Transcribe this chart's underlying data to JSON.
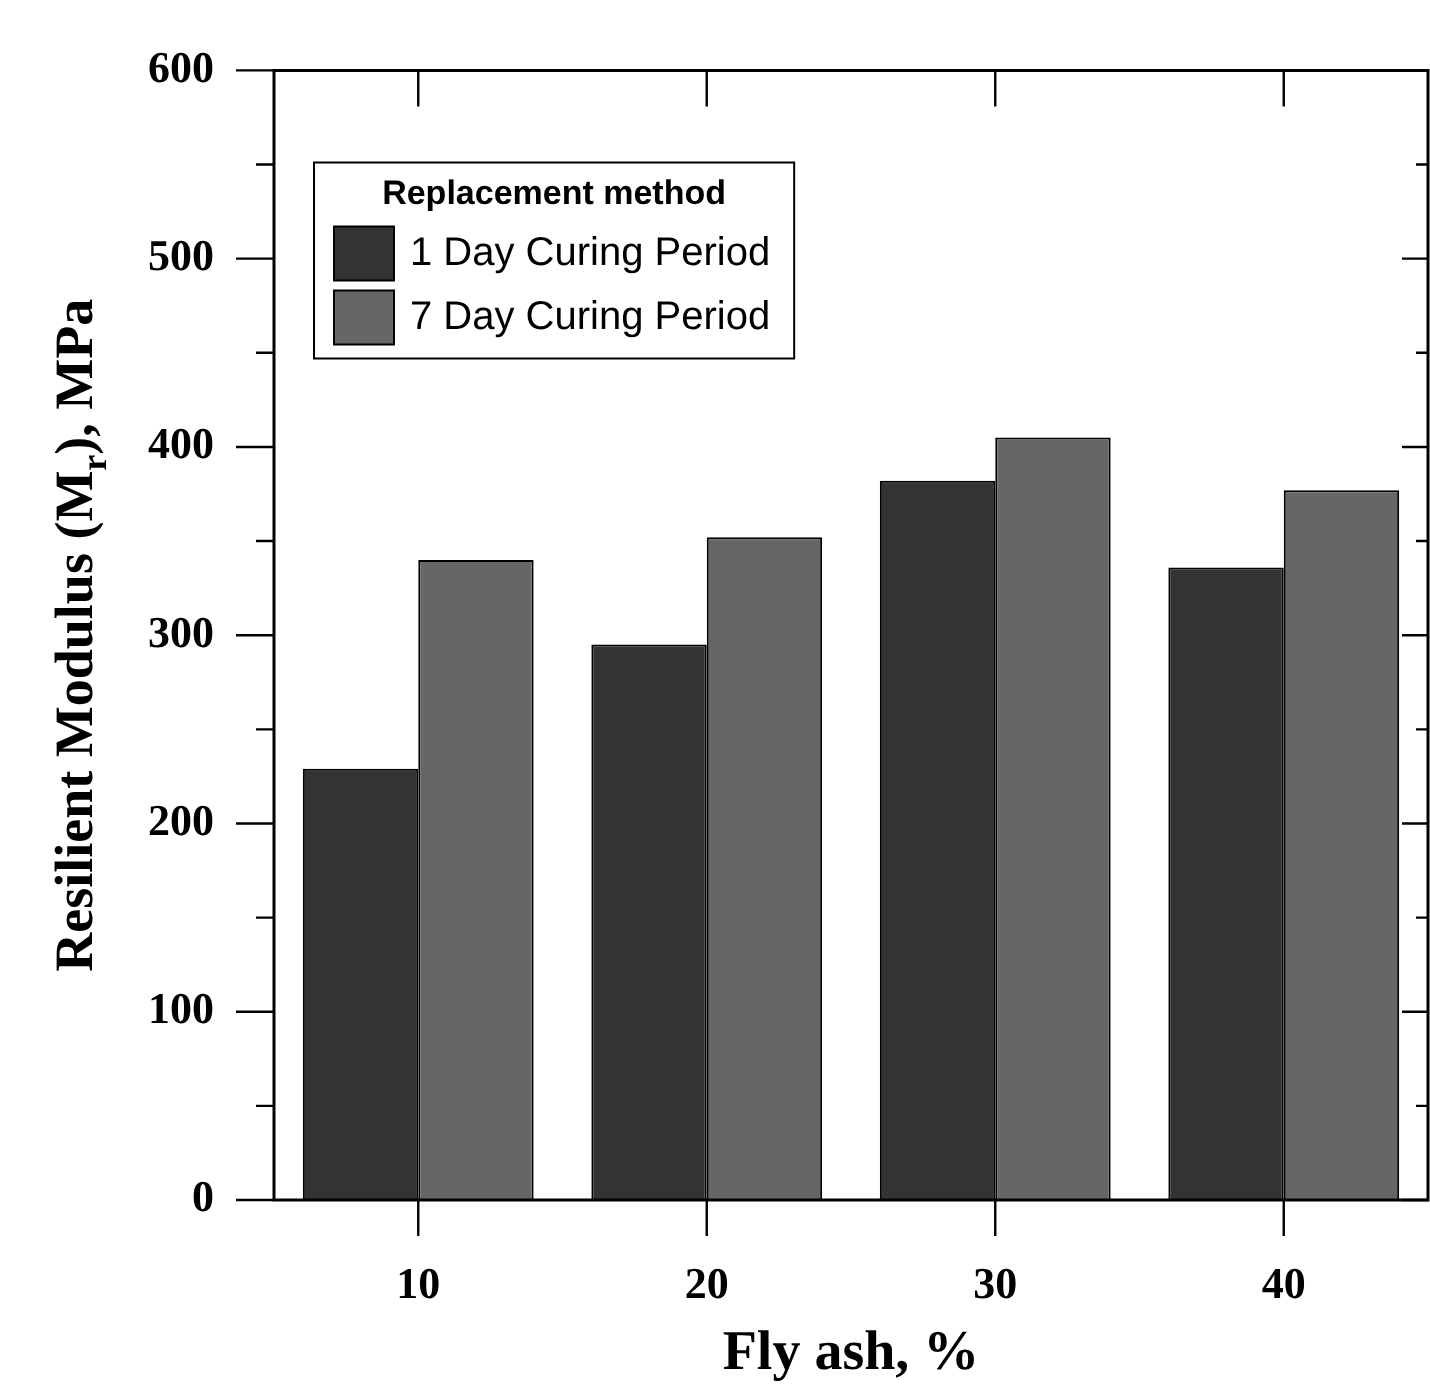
{
  "chart_data": {
    "type": "bar",
    "xlabel": "Fly ash, %",
    "ylabel": "Resilient Modulus (M$_{r}$), MPa",
    "legend_title": "Replacement method",
    "legend": "top left",
    "categories": [
      "10",
      "20",
      "30",
      "40"
    ],
    "series": [
      {
        "name": "1 Day Curing Period",
        "color": "#333333",
        "values": [
          229,
          295,
          382,
          336
        ]
      },
      {
        "name": "7 Day Curing Period",
        "color": "#666666",
        "values": [
          340,
          352,
          405,
          377
        ]
      }
    ],
    "ylim": [
      0,
      600
    ],
    "yticks": [
      0,
      {
        "value": 50,
        "label": null
      },
      100,
      {
        "value": 150,
        "label": null
      },
      200,
      {
        "value": 250,
        "label": null
      },
      300,
      {
        "value": 350,
        "label": null
      },
      400,
      {
        "value": 450,
        "label": null
      },
      500,
      {
        "value": 550,
        "label": null
      },
      600
    ]
  }
}
